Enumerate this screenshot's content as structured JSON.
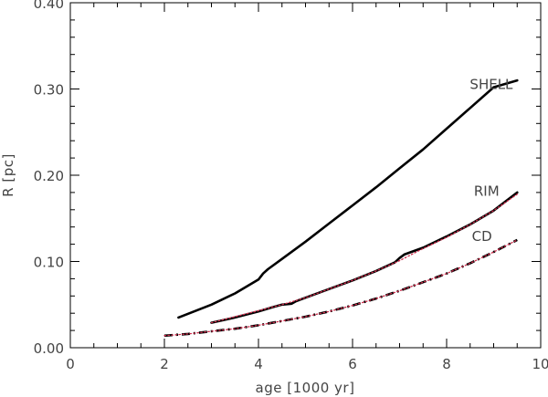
{
  "chart_data": {
    "type": "line",
    "title": "",
    "xlabel": "age [1000 yr]",
    "ylabel": "R [pc]",
    "xlim": [
      0,
      10
    ],
    "ylim": [
      0,
      0.4
    ],
    "xticks": [
      0,
      2,
      4,
      6,
      8,
      10
    ],
    "xtick_labels": [
      "0",
      "2",
      "4",
      "6",
      "8",
      "10"
    ],
    "yticks": [
      0,
      0.1,
      0.2,
      0.3,
      0.4
    ],
    "ytick_labels": [
      "0.00",
      "0.10",
      "0.20",
      "0.30",
      "0.40"
    ],
    "grid": false,
    "series": [
      {
        "name": "SHELL",
        "style": "solid",
        "color": "#000000",
        "x": [
          2.3,
          3.0,
          3.5,
          4.0,
          4.1,
          4.2,
          4.5,
          5.0,
          5.5,
          6.0,
          6.5,
          7.0,
          7.5,
          8.0,
          8.5,
          9.0,
          9.5
        ],
        "y": [
          0.035,
          0.05,
          0.063,
          0.079,
          0.086,
          0.091,
          0.103,
          0.123,
          0.144,
          0.165,
          0.186,
          0.208,
          0.23,
          0.254,
          0.278,
          0.302,
          0.31
        ]
      },
      {
        "name": "RIM",
        "style": "solid",
        "color": "#000000",
        "x": [
          3.0,
          3.5,
          4.0,
          4.3,
          4.5,
          4.7,
          4.8,
          5.0,
          5.5,
          6.0,
          6.5,
          6.9,
          7.0,
          7.1,
          7.5,
          8.0,
          8.5,
          9.0,
          9.5
        ],
        "y": [
          0.029,
          0.035,
          0.042,
          0.047,
          0.05,
          0.051,
          0.054,
          0.058,
          0.068,
          0.078,
          0.089,
          0.099,
          0.104,
          0.108,
          0.116,
          0.129,
          0.143,
          0.159,
          0.18
        ]
      },
      {
        "name": "",
        "style": "dotted",
        "color": "#cc2a4a",
        "x": [
          3.0,
          3.5,
          4.0,
          4.5,
          5.0,
          5.5,
          6.0,
          6.5,
          7.0,
          7.5,
          8.0,
          8.5,
          9.0,
          9.5
        ],
        "y": [
          0.029,
          0.036,
          0.043,
          0.05,
          0.058,
          0.068,
          0.078,
          0.089,
          0.101,
          0.115,
          0.128,
          0.143,
          0.159,
          0.178
        ]
      },
      {
        "name": "CD",
        "style": "dash-dot",
        "color": "#000000",
        "x": [
          2.0,
          2.5,
          3.0,
          3.5,
          4.0,
          4.5,
          5.0,
          5.5,
          6.0,
          6.5,
          7.0,
          7.5,
          8.0,
          8.5,
          9.0,
          9.5
        ],
        "y": [
          0.014,
          0.016,
          0.019,
          0.022,
          0.026,
          0.031,
          0.036,
          0.042,
          0.049,
          0.057,
          0.066,
          0.076,
          0.086,
          0.098,
          0.111,
          0.125
        ]
      },
      {
        "name": "",
        "style": "dotted",
        "color": "#cc2a4a",
        "x": [
          2.0,
          2.5,
          3.0,
          3.5,
          4.0,
          4.5,
          5.0,
          5.5,
          6.0,
          6.5,
          7.0,
          7.5,
          8.0,
          8.5,
          9.0,
          9.5
        ],
        "y": [
          0.014,
          0.016,
          0.019,
          0.022,
          0.026,
          0.031,
          0.036,
          0.042,
          0.049,
          0.057,
          0.066,
          0.076,
          0.086,
          0.098,
          0.111,
          0.125
        ]
      }
    ],
    "annotations": [
      {
        "text": "SHELL",
        "x": 8.95,
        "y": 0.3
      },
      {
        "text": "RIM",
        "x": 8.85,
        "y": 0.176
      },
      {
        "text": "CD",
        "x": 8.75,
        "y": 0.124
      }
    ]
  }
}
